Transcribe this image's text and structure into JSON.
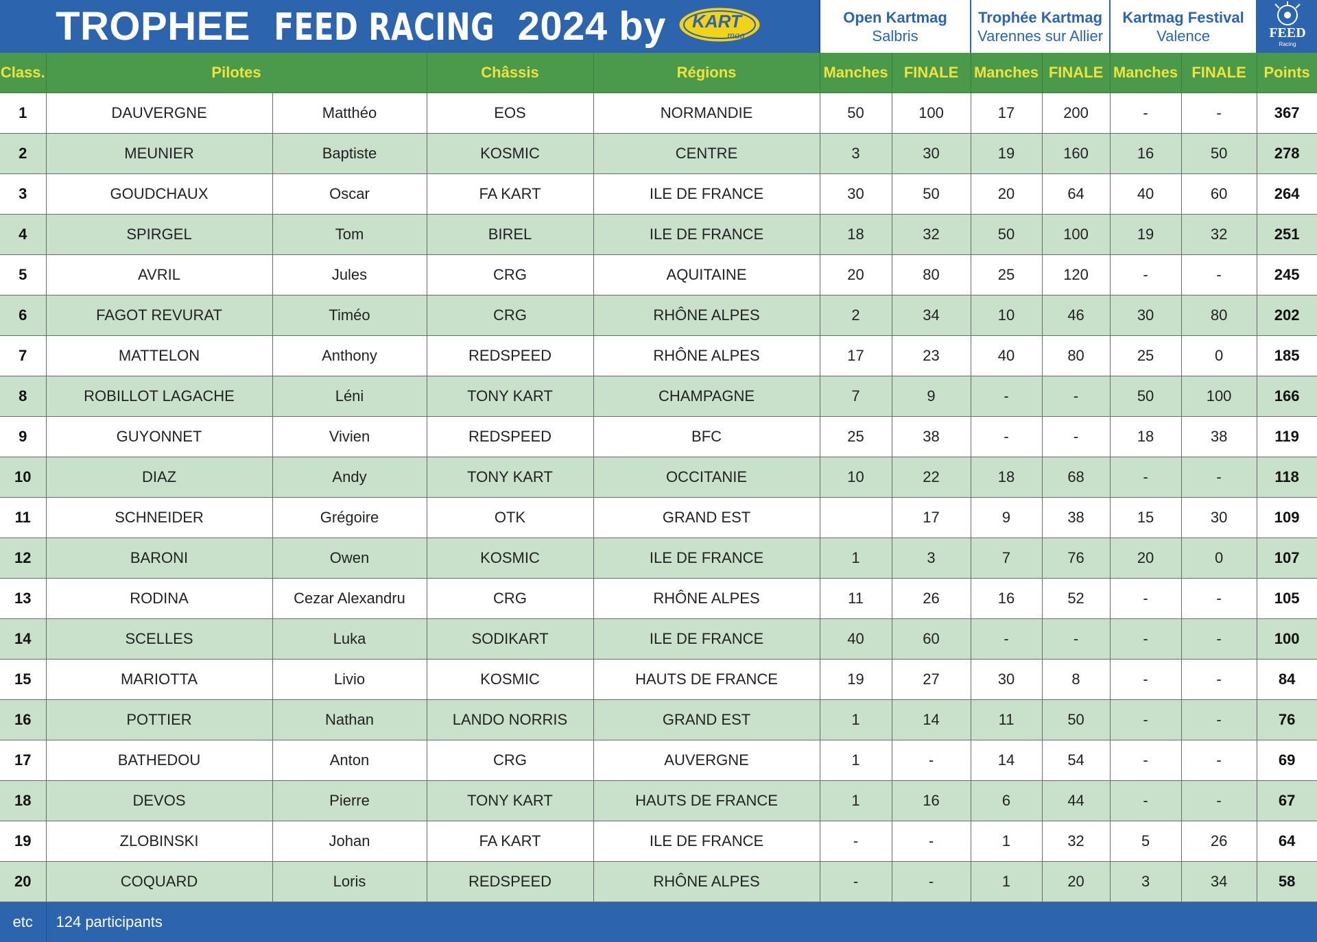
{
  "banner": {
    "title_part1": "TROPHEE",
    "title_part2": "FEED RACING",
    "title_part3": "2024 by",
    "kart_logo_text": "KART",
    "kart_logo_sub": "mag",
    "feed_logo_text": "FEED",
    "feed_logo_sub": "Racing",
    "events": [
      {
        "name": "Open Kartmag",
        "place": "Salbris"
      },
      {
        "name": "Trophée Kartmag",
        "place": "Varennes sur Allier"
      },
      {
        "name": "Kartmag Festival",
        "place": "Valence"
      }
    ]
  },
  "headers": {
    "rank": "Class.",
    "pilots": "Pilotes",
    "chassis": "Châssis",
    "regions": "Régions",
    "manches": "Manches",
    "finale": "FINALE",
    "points": "Points"
  },
  "colors": {
    "banner_blue": "#2d64ae",
    "header_green": "#4b9a4c",
    "header_text_yellow": "#f2e23c",
    "stripe_green": "#c9e0cb",
    "logo_yellow": "#f3d21a"
  },
  "rows": [
    {
      "rank": "1",
      "last": "DAUVERGNE",
      "first": "Matthéo",
      "chassis": "EOS",
      "region": "NORMANDIE",
      "e1m": "50",
      "e1f": "100",
      "e2m": "17",
      "e2f": "200",
      "e3m": "-",
      "e3f": "-",
      "points": "367"
    },
    {
      "rank": "2",
      "last": "MEUNIER",
      "first": "Baptiste",
      "chassis": "KOSMIC",
      "region": "CENTRE",
      "e1m": "3",
      "e1f": "30",
      "e2m": "19",
      "e2f": "160",
      "e3m": "16",
      "e3f": "50",
      "points": "278"
    },
    {
      "rank": "3",
      "last": "GOUDCHAUX",
      "first": "Oscar",
      "chassis": "FA KART",
      "region": "ILE DE FRANCE",
      "e1m": "30",
      "e1f": "50",
      "e2m": "20",
      "e2f": "64",
      "e3m": "40",
      "e3f": "60",
      "points": "264"
    },
    {
      "rank": "4",
      "last": "SPIRGEL",
      "first": "Tom",
      "chassis": "BIREL",
      "region": "ILE DE FRANCE",
      "e1m": "18",
      "e1f": "32",
      "e2m": "50",
      "e2f": "100",
      "e3m": "19",
      "e3f": "32",
      "points": "251"
    },
    {
      "rank": "5",
      "last": "AVRIL",
      "first": "Jules",
      "chassis": "CRG",
      "region": "AQUITAINE",
      "e1m": "20",
      "e1f": "80",
      "e2m": "25",
      "e2f": "120",
      "e3m": "-",
      "e3f": "-",
      "points": "245"
    },
    {
      "rank": "6",
      "last": "FAGOT REVURAT",
      "first": "Timéo",
      "chassis": "CRG",
      "region": "RHÔNE ALPES",
      "e1m": "2",
      "e1f": "34",
      "e2m": "10",
      "e2f": "46",
      "e3m": "30",
      "e3f": "80",
      "points": "202"
    },
    {
      "rank": "7",
      "last": "MATTELON",
      "first": "Anthony",
      "chassis": "REDSPEED",
      "region": "RHÔNE ALPES",
      "e1m": "17",
      "e1f": "23",
      "e2m": "40",
      "e2f": "80",
      "e3m": "25",
      "e3f": "0",
      "points": "185"
    },
    {
      "rank": "8",
      "last": "ROBILLOT LAGACHE",
      "first": "Léni",
      "chassis": "TONY KART",
      "region": "CHAMPAGNE",
      "e1m": "7",
      "e1f": "9",
      "e2m": "-",
      "e2f": "-",
      "e3m": "50",
      "e3f": "100",
      "points": "166"
    },
    {
      "rank": "9",
      "last": "GUYONNET",
      "first": "Vivien",
      "chassis": "REDSPEED",
      "region": "BFC",
      "e1m": "25",
      "e1f": "38",
      "e2m": "-",
      "e2f": "-",
      "e3m": "18",
      "e3f": "38",
      "points": "119"
    },
    {
      "rank": "10",
      "last": "DIAZ",
      "first": "Andy",
      "chassis": "TONY KART",
      "region": "OCCITANIE",
      "e1m": "10",
      "e1f": "22",
      "e2m": "18",
      "e2f": "68",
      "e3m": "-",
      "e3f": "-",
      "points": "118"
    },
    {
      "rank": "11",
      "last": "SCHNEIDER",
      "first": "Grégoire",
      "chassis": "OTK",
      "region": "GRAND EST",
      "e1m": "",
      "e1f": "17",
      "e2m": "9",
      "e2f": "38",
      "e3m": "15",
      "e3f": "30",
      "points": "109"
    },
    {
      "rank": "12",
      "last": "BARONI",
      "first": "Owen",
      "chassis": "KOSMIC",
      "region": "ILE DE FRANCE",
      "e1m": "1",
      "e1f": "3",
      "e2m": "7",
      "e2f": "76",
      "e3m": "20",
      "e3f": "0",
      "points": "107"
    },
    {
      "rank": "13",
      "last": "RODINA",
      "first": "Cezar Alexandru",
      "chassis": "CRG",
      "region": "RHÔNE ALPES",
      "e1m": "11",
      "e1f": "26",
      "e2m": "16",
      "e2f": "52",
      "e3m": "-",
      "e3f": "-",
      "points": "105"
    },
    {
      "rank": "14",
      "last": "SCELLES",
      "first": "Luka",
      "chassis": "SODIKART",
      "region": "ILE DE FRANCE",
      "e1m": "40",
      "e1f": "60",
      "e2m": "-",
      "e2f": "-",
      "e3m": "-",
      "e3f": "-",
      "points": "100"
    },
    {
      "rank": "15",
      "last": "MARIOTTA",
      "first": "Livio",
      "chassis": "KOSMIC",
      "region": "HAUTS DE FRANCE",
      "e1m": "19",
      "e1f": "27",
      "e2m": "30",
      "e2f": "8",
      "e3m": "-",
      "e3f": "-",
      "points": "84"
    },
    {
      "rank": "16",
      "last": "POTTIER",
      "first": "Nathan",
      "chassis": "LANDO NORRIS",
      "region": "GRAND EST",
      "e1m": "1",
      "e1f": "14",
      "e2m": "11",
      "e2f": "50",
      "e3m": "-",
      "e3f": "-",
      "points": "76"
    },
    {
      "rank": "17",
      "last": "BATHEDOU",
      "first": "Anton",
      "chassis": "CRG",
      "region": "AUVERGNE",
      "e1m": "1",
      "e1f": "-",
      "e2m": "14",
      "e2f": "54",
      "e3m": "-",
      "e3f": "-",
      "points": "69"
    },
    {
      "rank": "18",
      "last": "DEVOS",
      "first": "Pierre",
      "chassis": "TONY KART",
      "region": "HAUTS DE FRANCE",
      "e1m": "1",
      "e1f": "16",
      "e2m": "6",
      "e2f": "44",
      "e3m": "-",
      "e3f": "-",
      "points": "67"
    },
    {
      "rank": "19",
      "last": "ZLOBINSKI",
      "first": "Johan",
      "chassis": "FA KART",
      "region": "ILE DE FRANCE",
      "e1m": "-",
      "e1f": "-",
      "e2m": "1",
      "e2f": "32",
      "e3m": "5",
      "e3f": "26",
      "points": "64"
    },
    {
      "rank": "20",
      "last": "COQUARD",
      "first": "Loris",
      "chassis": "REDSPEED",
      "region": "RHÔNE ALPES",
      "e1m": "-",
      "e1f": "-",
      "e2m": "1",
      "e2f": "20",
      "e3m": "3",
      "e3f": "34",
      "points": "58"
    }
  ],
  "footer": {
    "etc": "etc",
    "participants": "124 participants"
  }
}
